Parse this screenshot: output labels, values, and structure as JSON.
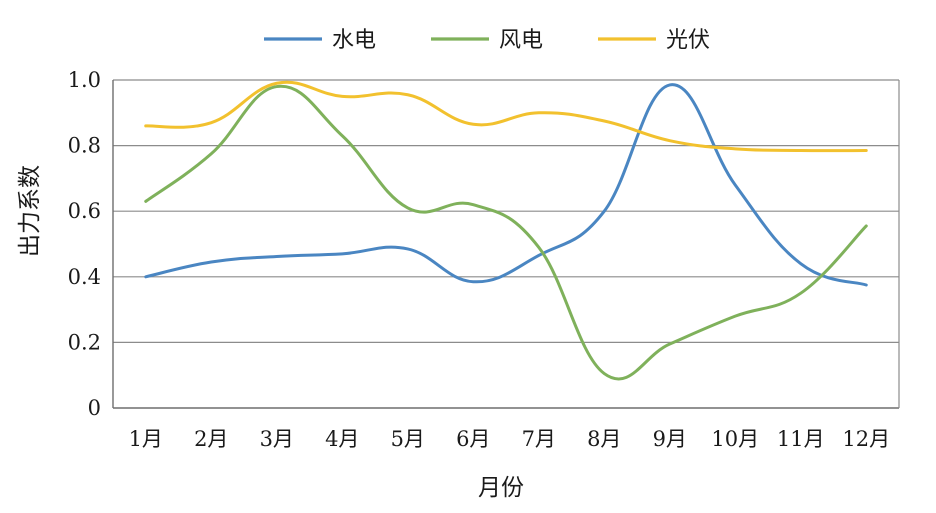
{
  "chart_data": {
    "type": "line",
    "title": "",
    "xlabel": "月份",
    "ylabel": "出力系数",
    "ylim": [
      0,
      1.0
    ],
    "yticks": [
      "0",
      "0.2",
      "0.4",
      "0.6",
      "0.8",
      "1.0"
    ],
    "categories": [
      "1月",
      "2月",
      "3月",
      "4月",
      "5月",
      "6月",
      "7月",
      "8月",
      "9月",
      "10月",
      "11月",
      "12月"
    ],
    "grid": "horizontal",
    "legend_position": "top-center",
    "series": [
      {
        "name": "水电",
        "color": "#4a86c2",
        "values": [
          0.4,
          0.445,
          0.462,
          0.47,
          0.485,
          0.385,
          0.465,
          0.6,
          0.985,
          0.68,
          0.44,
          0.375
        ]
      },
      {
        "name": "风电",
        "color": "#7fb15b",
        "values": [
          0.63,
          0.775,
          0.98,
          0.83,
          0.61,
          0.62,
          0.49,
          0.105,
          0.195,
          0.28,
          0.35,
          0.555
        ]
      },
      {
        "name": "光伏",
        "color": "#f2c12e",
        "values": [
          0.86,
          0.87,
          0.99,
          0.95,
          0.955,
          0.865,
          0.9,
          0.875,
          0.815,
          0.79,
          0.785,
          0.785
        ]
      }
    ]
  }
}
